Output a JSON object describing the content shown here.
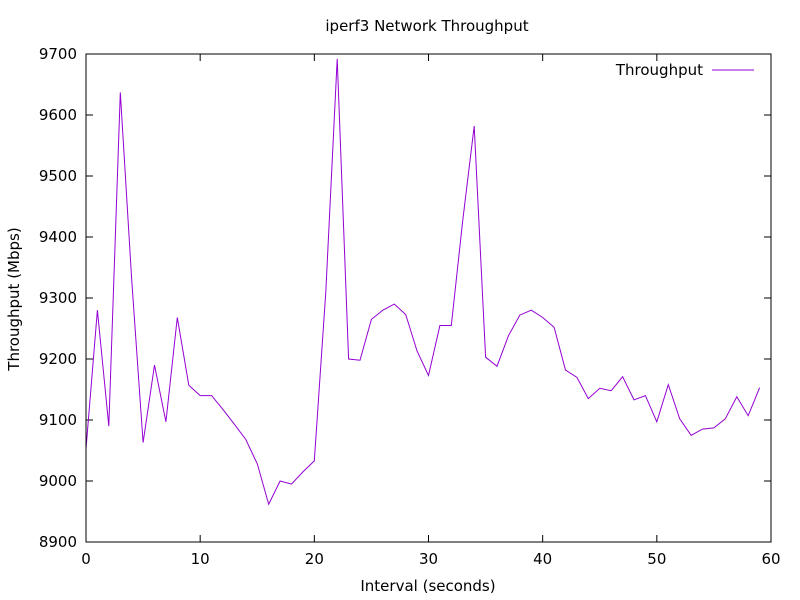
{
  "chart_data": {
    "type": "line",
    "title": "iperf3 Network Throughput",
    "xlabel": "Interval (seconds)",
    "ylabel": "Throughput (Mbps)",
    "xlim": [
      0,
      60
    ],
    "ylim": [
      8900,
      9700
    ],
    "xticks": [
      0,
      10,
      20,
      30,
      40,
      50,
      60
    ],
    "yticks": [
      8900,
      9000,
      9100,
      9200,
      9300,
      9400,
      9500,
      9600,
      9700
    ],
    "grid": false,
    "legend_position": "top-right",
    "series": [
      {
        "name": "Throughput",
        "color": "#9400d3",
        "x": [
          0,
          1,
          2,
          3,
          4,
          5,
          6,
          7,
          8,
          9,
          10,
          11,
          12,
          13,
          14,
          15,
          16,
          17,
          18,
          19,
          20,
          21,
          22,
          23,
          24,
          25,
          26,
          27,
          28,
          29,
          30,
          31,
          32,
          33,
          34,
          35,
          36,
          37,
          38,
          39,
          40,
          41,
          42,
          43,
          44,
          45,
          46,
          47,
          48,
          49,
          50,
          51,
          52,
          53,
          54,
          55,
          56,
          57,
          58,
          59
        ],
        "y": [
          9053,
          9280,
          9090,
          9637,
          9330,
          9063,
          9190,
          9097,
          9268,
          9157,
          9140,
          9140,
          9117,
          9093,
          9068,
          9028,
          8962,
          9000,
          8995,
          9015,
          9033,
          9310,
          9692,
          9200,
          9198,
          9265,
          9280,
          9290,
          9273,
          9213,
          9173,
          9255,
          9255,
          9428,
          9582,
          9203,
          9188,
          9238,
          9272,
          9280,
          9268,
          9252,
          9182,
          9170,
          9135,
          9152,
          9148,
          9171,
          9133,
          9140,
          9097,
          9158,
          9102,
          9075,
          9085,
          9087,
          9102,
          9138,
          9107,
          9153
        ]
      }
    ]
  }
}
